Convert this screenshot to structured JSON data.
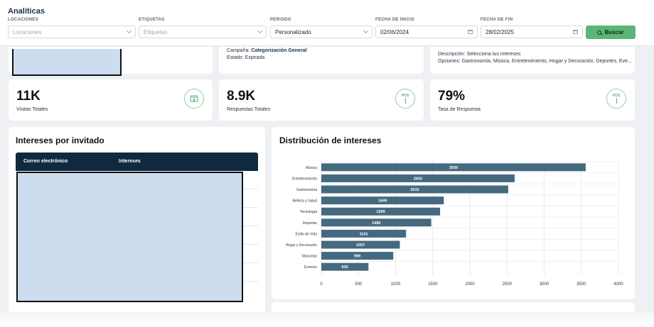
{
  "header": {
    "title": "Analíticas"
  },
  "filters": {
    "locaciones": {
      "label": "LOCACIONES",
      "placeholder": "Locaciones"
    },
    "etiquetas": {
      "label": "ETIQUETAS",
      "placeholder": "Etiquetas"
    },
    "periodo": {
      "label": "PERIODO",
      "value": "Personalizado"
    },
    "fecha_inicio": {
      "label": "FECHA DE INICIO",
      "value": "02/06/2024"
    },
    "fecha_fin": {
      "label": "FECHA DE FIN",
      "value": "28/02/2025"
    },
    "search_button": "Buscar"
  },
  "campaign": {
    "campaign_label": "Campaña:",
    "campaign_name": "Categorización General",
    "status": "Estado: Expirada"
  },
  "question": {
    "description": "Descripción: Selecciona tus intereses",
    "options": "Opciones: Gastronomía, Música, Entretenimiento, Hogar y Decoración, Deportes, Eve..."
  },
  "kpis": [
    {
      "value": "11K",
      "label": "Visitas Totales",
      "icon": "store-icon"
    },
    {
      "value": "8.9K",
      "label": "Respuestas Totales",
      "icon": "pos-terminal-icon",
      "icon_text": "POS"
    },
    {
      "value": "79%",
      "label": "Tasa de Respuesta",
      "icon": "pos-terminal-icon",
      "icon_text": "POS"
    }
  ],
  "table": {
    "title": "Intereses por invitado",
    "columns": [
      "Correo electrónico",
      "Intereses"
    ]
  },
  "chart_title": "Distribución de intereses",
  "chart_data": {
    "type": "bar",
    "orientation": "horizontal",
    "title": "Distribución de intereses",
    "categories": [
      "Música",
      "Entretenimiento",
      "Gastronomía",
      "Belleza y Salud",
      "Tecnología",
      "Deportes",
      "Estilo de Vida",
      "Hogar y Decoración",
      "Mascotas",
      "Eventos"
    ],
    "values": [
      3559,
      2602,
      2516,
      1649,
      1599,
      1480,
      1141,
      1057,
      969,
      635
    ],
    "xlim": [
      0,
      4000
    ],
    "xticks": [
      0,
      500,
      1000,
      1500,
      2000,
      2500,
      3000,
      3500,
      4000
    ],
    "bar_color": "#456a80",
    "grid": true,
    "data_labels": true
  },
  "colors": {
    "accent": "#5ab577",
    "header_dark": "#0f2a40",
    "title": "#15304f"
  }
}
